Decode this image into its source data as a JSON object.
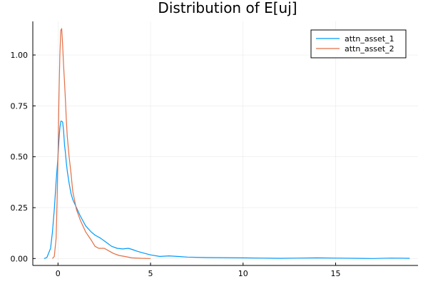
{
  "chart_data": {
    "type": "line",
    "title": "Distribution of E[uj]",
    "xlabel": "",
    "ylabel": "",
    "xlim": [
      -1.36,
      19.45
    ],
    "ylim": [
      -0.034,
      1.165
    ],
    "x_ticks": [
      0,
      5,
      10,
      15
    ],
    "x_tick_labels": [
      "0",
      "5",
      "10",
      "15"
    ],
    "y_ticks": [
      0,
      0.25,
      0.5,
      0.75,
      1.0
    ],
    "y_tick_labels": [
      "0.00",
      "0.25",
      "0.50",
      "0.75",
      "1.00"
    ],
    "grid": true,
    "legend_position": "top-right",
    "series": [
      {
        "name": "attn_asset_1",
        "color": "#009AFA",
        "x": [
          -0.75,
          -0.6,
          -0.4,
          -0.3,
          -0.2,
          -0.1,
          0.0,
          0.05,
          0.1,
          0.15,
          0.2,
          0.25,
          0.3,
          0.35,
          0.4,
          0.45,
          0.5,
          0.6,
          0.7,
          0.8,
          1.0,
          1.2,
          1.5,
          1.8,
          2.0,
          2.3,
          2.6,
          2.9,
          3.2,
          3.5,
          3.8,
          4.0,
          4.3,
          4.7,
          5.0,
          5.5,
          6.0,
          7.0,
          8.0,
          10.0,
          11.0,
          12.0,
          13.0,
          14.0,
          15.0,
          17.0,
          18.0,
          19.0
        ],
        "y": [
          0.0,
          0.005,
          0.05,
          0.13,
          0.24,
          0.38,
          0.5,
          0.58,
          0.64,
          0.675,
          0.675,
          0.67,
          0.63,
          0.56,
          0.52,
          0.47,
          0.43,
          0.37,
          0.32,
          0.29,
          0.25,
          0.21,
          0.16,
          0.13,
          0.115,
          0.1,
          0.08,
          0.06,
          0.05,
          0.047,
          0.05,
          0.045,
          0.035,
          0.025,
          0.018,
          0.01,
          0.013,
          0.007,
          0.005,
          0.003,
          0.002,
          0.001,
          0.002,
          0.003,
          0.002,
          0.0,
          0.002,
          0.001
        ]
      },
      {
        "name": "attn_asset_2",
        "color": "#E26F46",
        "x": [
          -0.3,
          -0.2,
          -0.1,
          -0.05,
          0.0,
          0.05,
          0.1,
          0.15,
          0.2,
          0.25,
          0.3,
          0.35,
          0.4,
          0.45,
          0.5,
          0.6,
          0.7,
          0.8,
          1.0,
          1.2,
          1.5,
          1.8,
          2.0,
          2.2,
          2.5,
          2.8,
          3.0,
          3.3,
          3.6,
          4.0,
          4.5,
          5.0
        ],
        "y": [
          0.0,
          0.01,
          0.1,
          0.28,
          0.5,
          0.78,
          1.0,
          1.12,
          1.13,
          1.05,
          0.95,
          0.87,
          0.78,
          0.68,
          0.6,
          0.5,
          0.42,
          0.33,
          0.24,
          0.19,
          0.13,
          0.09,
          0.06,
          0.05,
          0.05,
          0.035,
          0.025,
          0.015,
          0.01,
          0.003,
          0.001,
          0.0
        ]
      }
    ]
  }
}
